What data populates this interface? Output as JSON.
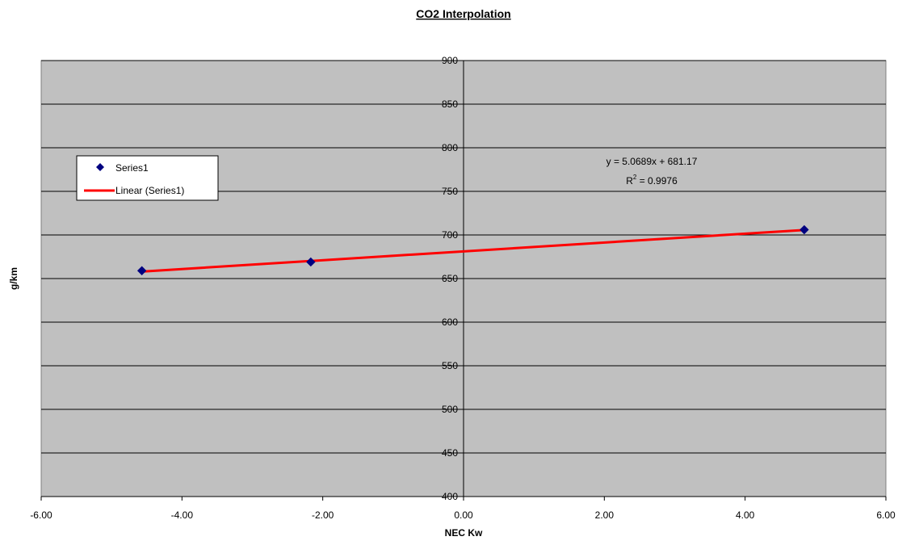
{
  "chart_data": {
    "type": "scatter",
    "title": "CO2 Interpolation",
    "xlabel": "NEC Kw",
    "ylabel": "g/km",
    "xlim": [
      -6,
      6
    ],
    "ylim": [
      400,
      900
    ],
    "x_ticks": [
      "-6.00",
      "-4.00",
      "-2.00",
      "0.00",
      "2.00",
      "4.00",
      "6.00"
    ],
    "y_ticks": [
      "400",
      "450",
      "500",
      "550",
      "600",
      "650",
      "700",
      "750",
      "800",
      "850",
      "900"
    ],
    "grid": true,
    "legend_position": "left",
    "series": [
      {
        "name": "Series1",
        "marker": "diamond",
        "color": "#000080",
        "points": [
          {
            "x": -4.57,
            "y": 659
          },
          {
            "x": -2.17,
            "y": 669
          },
          {
            "x": 4.84,
            "y": 706
          }
        ]
      }
    ],
    "trendline": {
      "name": "Linear (Series1)",
      "color": "#ff0000",
      "slope": 5.0689,
      "intercept": 681.17,
      "equation": "y = 5.0689x + 681.17",
      "r2_prefix": "R",
      "r2_exponent": "2",
      "r2_value": " = 0.9976"
    },
    "plot_background": "#c0c0c0"
  }
}
